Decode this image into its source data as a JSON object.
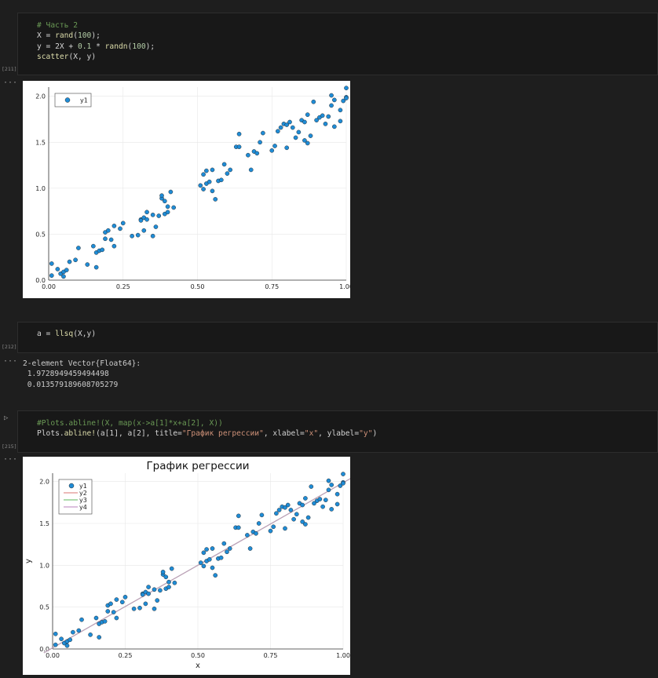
{
  "cells": [
    {
      "exec_count": "[211]",
      "code": [
        {
          "comment": "# Часть 2"
        },
        {
          "X_eq": "X = ",
          "fn": "rand",
          "open": "(",
          "num": "100",
          "close": ");"
        },
        {
          "lhs": "y = 2X + ",
          "num1": "0.1",
          "mid": " * ",
          "fn": "randn",
          "open": "(",
          "num2": "100",
          "close": ");"
        },
        {
          "fn": "scatter",
          "args": "(X, y)"
        }
      ]
    },
    {
      "exec_count": "[212]",
      "code_line": {
        "lhs": "a = ",
        "fn": "llsq",
        "args": "(X,y)"
      },
      "output": [
        "2-element Vector{Float64}:",
        " 1.9728949459494498",
        " 0.013579189608705279"
      ]
    },
    {
      "exec_count": "[215]",
      "code": [
        {
          "comment": "#Plots.abline!(X, map(x->a[1]*x+a[2], X))"
        },
        {
          "pre": "Plots.",
          "fn": "abline!",
          "args1": "(a[1], a[2], title=",
          "str1": "\"График регрессии\"",
          "args2": ", xlabel=",
          "str2": "\"x\"",
          "args3": ", ylabel=",
          "str3": "\"y\"",
          "close": ")"
        }
      ]
    }
  ],
  "ellipsis": "···",
  "run_icon": "play-icon",
  "colors": {
    "marker": "#1f8cd6",
    "y2": "#e0908f",
    "y3": "#7ec77e",
    "y4": "#c79ac9"
  },
  "chart_data": [
    {
      "type": "scatter",
      "title": "",
      "xlabel": "",
      "ylabel": "",
      "xlim": [
        0,
        1.0
      ],
      "ylim": [
        0,
        2.1
      ],
      "xticks": [
        "0.00",
        "0.25",
        "0.50",
        "0.75",
        "1.00"
      ],
      "yticks": [
        "0.0",
        "0.5",
        "1.0",
        "1.5",
        "2.0"
      ],
      "legend": [
        "y1"
      ],
      "grid": true,
      "series": [
        {
          "name": "y1",
          "points": [
            [
              0.01,
              0.05
            ],
            [
              0.01,
              0.18
            ],
            [
              0.03,
              0.12
            ],
            [
              0.04,
              0.07
            ],
            [
              0.05,
              0.04
            ],
            [
              0.05,
              0.09
            ],
            [
              0.06,
              0.11
            ],
            [
              0.07,
              0.2
            ],
            [
              0.09,
              0.22
            ],
            [
              0.1,
              0.35
            ],
            [
              0.13,
              0.17
            ],
            [
              0.15,
              0.37
            ],
            [
              0.16,
              0.3
            ],
            [
              0.16,
              0.14
            ],
            [
              0.17,
              0.32
            ],
            [
              0.18,
              0.33
            ],
            [
              0.19,
              0.45
            ],
            [
              0.19,
              0.52
            ],
            [
              0.2,
              0.54
            ],
            [
              0.21,
              0.44
            ],
            [
              0.22,
              0.59
            ],
            [
              0.22,
              0.37
            ],
            [
              0.24,
              0.56
            ],
            [
              0.25,
              0.62
            ],
            [
              0.28,
              0.48
            ],
            [
              0.3,
              0.49
            ],
            [
              0.31,
              0.66
            ],
            [
              0.31,
              0.65
            ],
            [
              0.32,
              0.68
            ],
            [
              0.32,
              0.54
            ],
            [
              0.33,
              0.74
            ],
            [
              0.33,
              0.66
            ],
            [
              0.35,
              0.71
            ],
            [
              0.35,
              0.48
            ],
            [
              0.36,
              0.58
            ],
            [
              0.37,
              0.7
            ],
            [
              0.38,
              0.89
            ],
            [
              0.38,
              0.92
            ],
            [
              0.39,
              0.86
            ],
            [
              0.39,
              0.72
            ],
            [
              0.4,
              0.74
            ],
            [
              0.4,
              0.8
            ],
            [
              0.41,
              0.96
            ],
            [
              0.42,
              0.79
            ],
            [
              0.51,
              1.03
            ],
            [
              0.52,
              1.15
            ],
            [
              0.52,
              0.99
            ],
            [
              0.53,
              1.05
            ],
            [
              0.53,
              1.19
            ],
            [
              0.54,
              1.07
            ],
            [
              0.55,
              1.2
            ],
            [
              0.55,
              0.97
            ],
            [
              0.56,
              0.88
            ],
            [
              0.57,
              1.08
            ],
            [
              0.58,
              1.09
            ],
            [
              0.59,
              1.26
            ],
            [
              0.6,
              1.16
            ],
            [
              0.61,
              1.2
            ],
            [
              0.63,
              1.45
            ],
            [
              0.64,
              1.45
            ],
            [
              0.64,
              1.59
            ],
            [
              0.67,
              1.36
            ],
            [
              0.68,
              1.2
            ],
            [
              0.69,
              1.4
            ],
            [
              0.7,
              1.38
            ],
            [
              0.71,
              1.5
            ],
            [
              0.72,
              1.6
            ],
            [
              0.75,
              1.41
            ],
            [
              0.76,
              1.46
            ],
            [
              0.77,
              1.62
            ],
            [
              0.78,
              1.66
            ],
            [
              0.79,
              1.7
            ],
            [
              0.8,
              1.44
            ],
            [
              0.8,
              1.69
            ],
            [
              0.81,
              1.72
            ],
            [
              0.82,
              1.66
            ],
            [
              0.83,
              1.55
            ],
            [
              0.84,
              1.61
            ],
            [
              0.85,
              1.74
            ],
            [
              0.86,
              1.72
            ],
            [
              0.86,
              1.52
            ],
            [
              0.87,
              1.49
            ],
            [
              0.87,
              1.8
            ],
            [
              0.88,
              1.57
            ],
            [
              0.89,
              1.94
            ],
            [
              0.9,
              1.74
            ],
            [
              0.91,
              1.77
            ],
            [
              0.92,
              1.79
            ],
            [
              0.93,
              1.7
            ],
            [
              0.94,
              1.78
            ],
            [
              0.95,
              1.9
            ],
            [
              0.95,
              2.01
            ],
            [
              0.96,
              1.67
            ],
            [
              0.98,
              1.73
            ],
            [
              0.98,
              1.85
            ],
            [
              0.99,
              1.95
            ],
            [
              1.0,
              1.99
            ],
            [
              1.0,
              2.09
            ],
            [
              1.0,
              1.98
            ],
            [
              0.96,
              1.96
            ]
          ]
        }
      ]
    },
    {
      "type": "scatter",
      "title": "График регрессии",
      "xlabel": "x",
      "ylabel": "y",
      "xlim": [
        0,
        1.0
      ],
      "ylim": [
        0,
        2.1
      ],
      "xticks": [
        "0.00",
        "0.25",
        "0.50",
        "0.75",
        "1.00"
      ],
      "yticks": [
        "0.0",
        "0.5",
        "1.0",
        "1.5",
        "2.0"
      ],
      "legend": [
        "y1",
        "y2",
        "y3",
        "y4"
      ],
      "grid": true,
      "lines": [
        {
          "name": "y2",
          "slope": 1.9728949459494498,
          "intercept": 0.013579189608705279
        },
        {
          "name": "y3",
          "slope": 1.9728949459494498,
          "intercept": 0.013579189608705279
        },
        {
          "name": "y4",
          "slope": 1.9728949459494498,
          "intercept": 0.013579189608705279
        }
      ],
      "series_ref": "same points as first chart (y1)"
    }
  ]
}
